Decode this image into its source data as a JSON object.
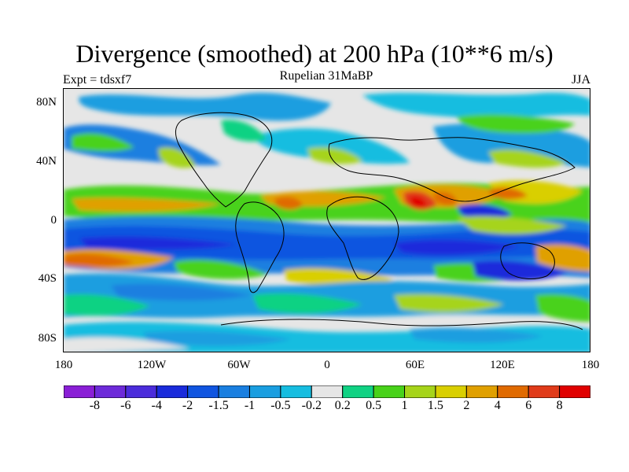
{
  "title": "Divergence (smoothed) at 200 hPa (10**6 m/s)",
  "subtitle": "Rupelian  31MaBP",
  "experiment": "Expt = tdsxf7",
  "season": "JJA",
  "lat_labels": [
    "80N",
    "40N",
    "0",
    "40S",
    "80S"
  ],
  "lon_labels": [
    "180",
    "120W",
    "60W",
    "0",
    "60E",
    "120E",
    "180"
  ],
  "colorbar": {
    "colors": [
      "#8a1fd6",
      "#6d2ad9",
      "#4b2cdb",
      "#1a2bdb",
      "#1055e0",
      "#1a7fe0",
      "#1a9ee0",
      "#16bde0",
      "#e6e6e6",
      "#10d283",
      "#48d21a",
      "#a6d41a",
      "#d9cf00",
      "#e0a000",
      "#e06a00",
      "#e03b1a",
      "#e00000"
    ],
    "labels": [
      "-8",
      "-6",
      "-4",
      "-2",
      "-1.5",
      "-1",
      "-0.5",
      "-0.2",
      "0.2",
      "0.5",
      "1",
      "1.5",
      "2",
      "4",
      "6",
      "8"
    ]
  }
}
